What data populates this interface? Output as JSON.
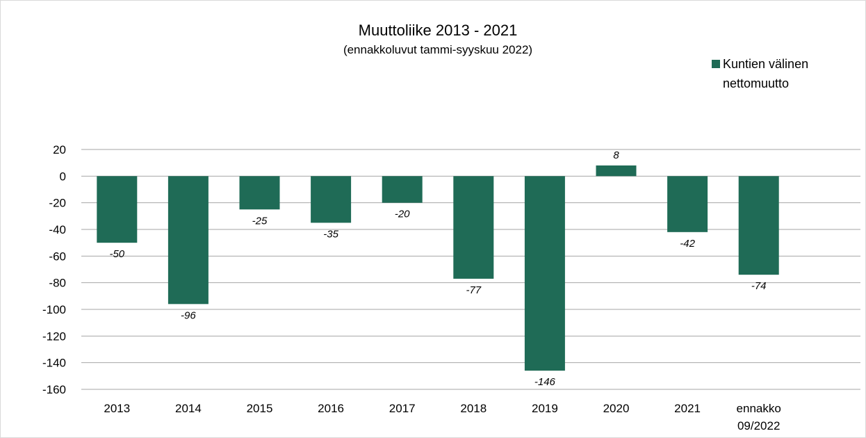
{
  "chart_data": {
    "type": "bar",
    "title": "Muuttoliike 2013 - 2021",
    "subtitle": "(ennakkoluvut tammi-syyskuu 2022)",
    "categories": [
      "2013",
      "2014",
      "2015",
      "2016",
      "2017",
      "2018",
      "2019",
      "2020",
      "2021",
      "ennakko 09/2022"
    ],
    "category_lines": [
      [
        "2013"
      ],
      [
        "2014"
      ],
      [
        "2015"
      ],
      [
        "2016"
      ],
      [
        "2017"
      ],
      [
        "2018"
      ],
      [
        "2019"
      ],
      [
        "2020"
      ],
      [
        "2021"
      ],
      [
        "ennakko",
        "09/2022"
      ]
    ],
    "series": [
      {
        "name": "Kuntien välinen nettomuutto",
        "name_lines": [
          "Kuntien välinen",
          "nettomuutto"
        ],
        "values": [
          -50,
          -96,
          -25,
          -35,
          -20,
          -77,
          -146,
          8,
          -42,
          -74
        ],
        "data_labels": [
          "-50",
          "-96",
          "-25",
          "-35",
          "-20",
          "-77",
          "-146",
          "8",
          "-42",
          "-74"
        ]
      }
    ],
    "ylim": [
      -160,
      20
    ],
    "yticks": [
      20,
      0,
      -20,
      -40,
      -60,
      -80,
      -100,
      -120,
      -140,
      -160
    ],
    "grid": true,
    "legend": "top-right",
    "colors": {
      "bar": "#1f6b56",
      "grid": "#a6a6a6",
      "border": "#d9d9d9"
    }
  }
}
